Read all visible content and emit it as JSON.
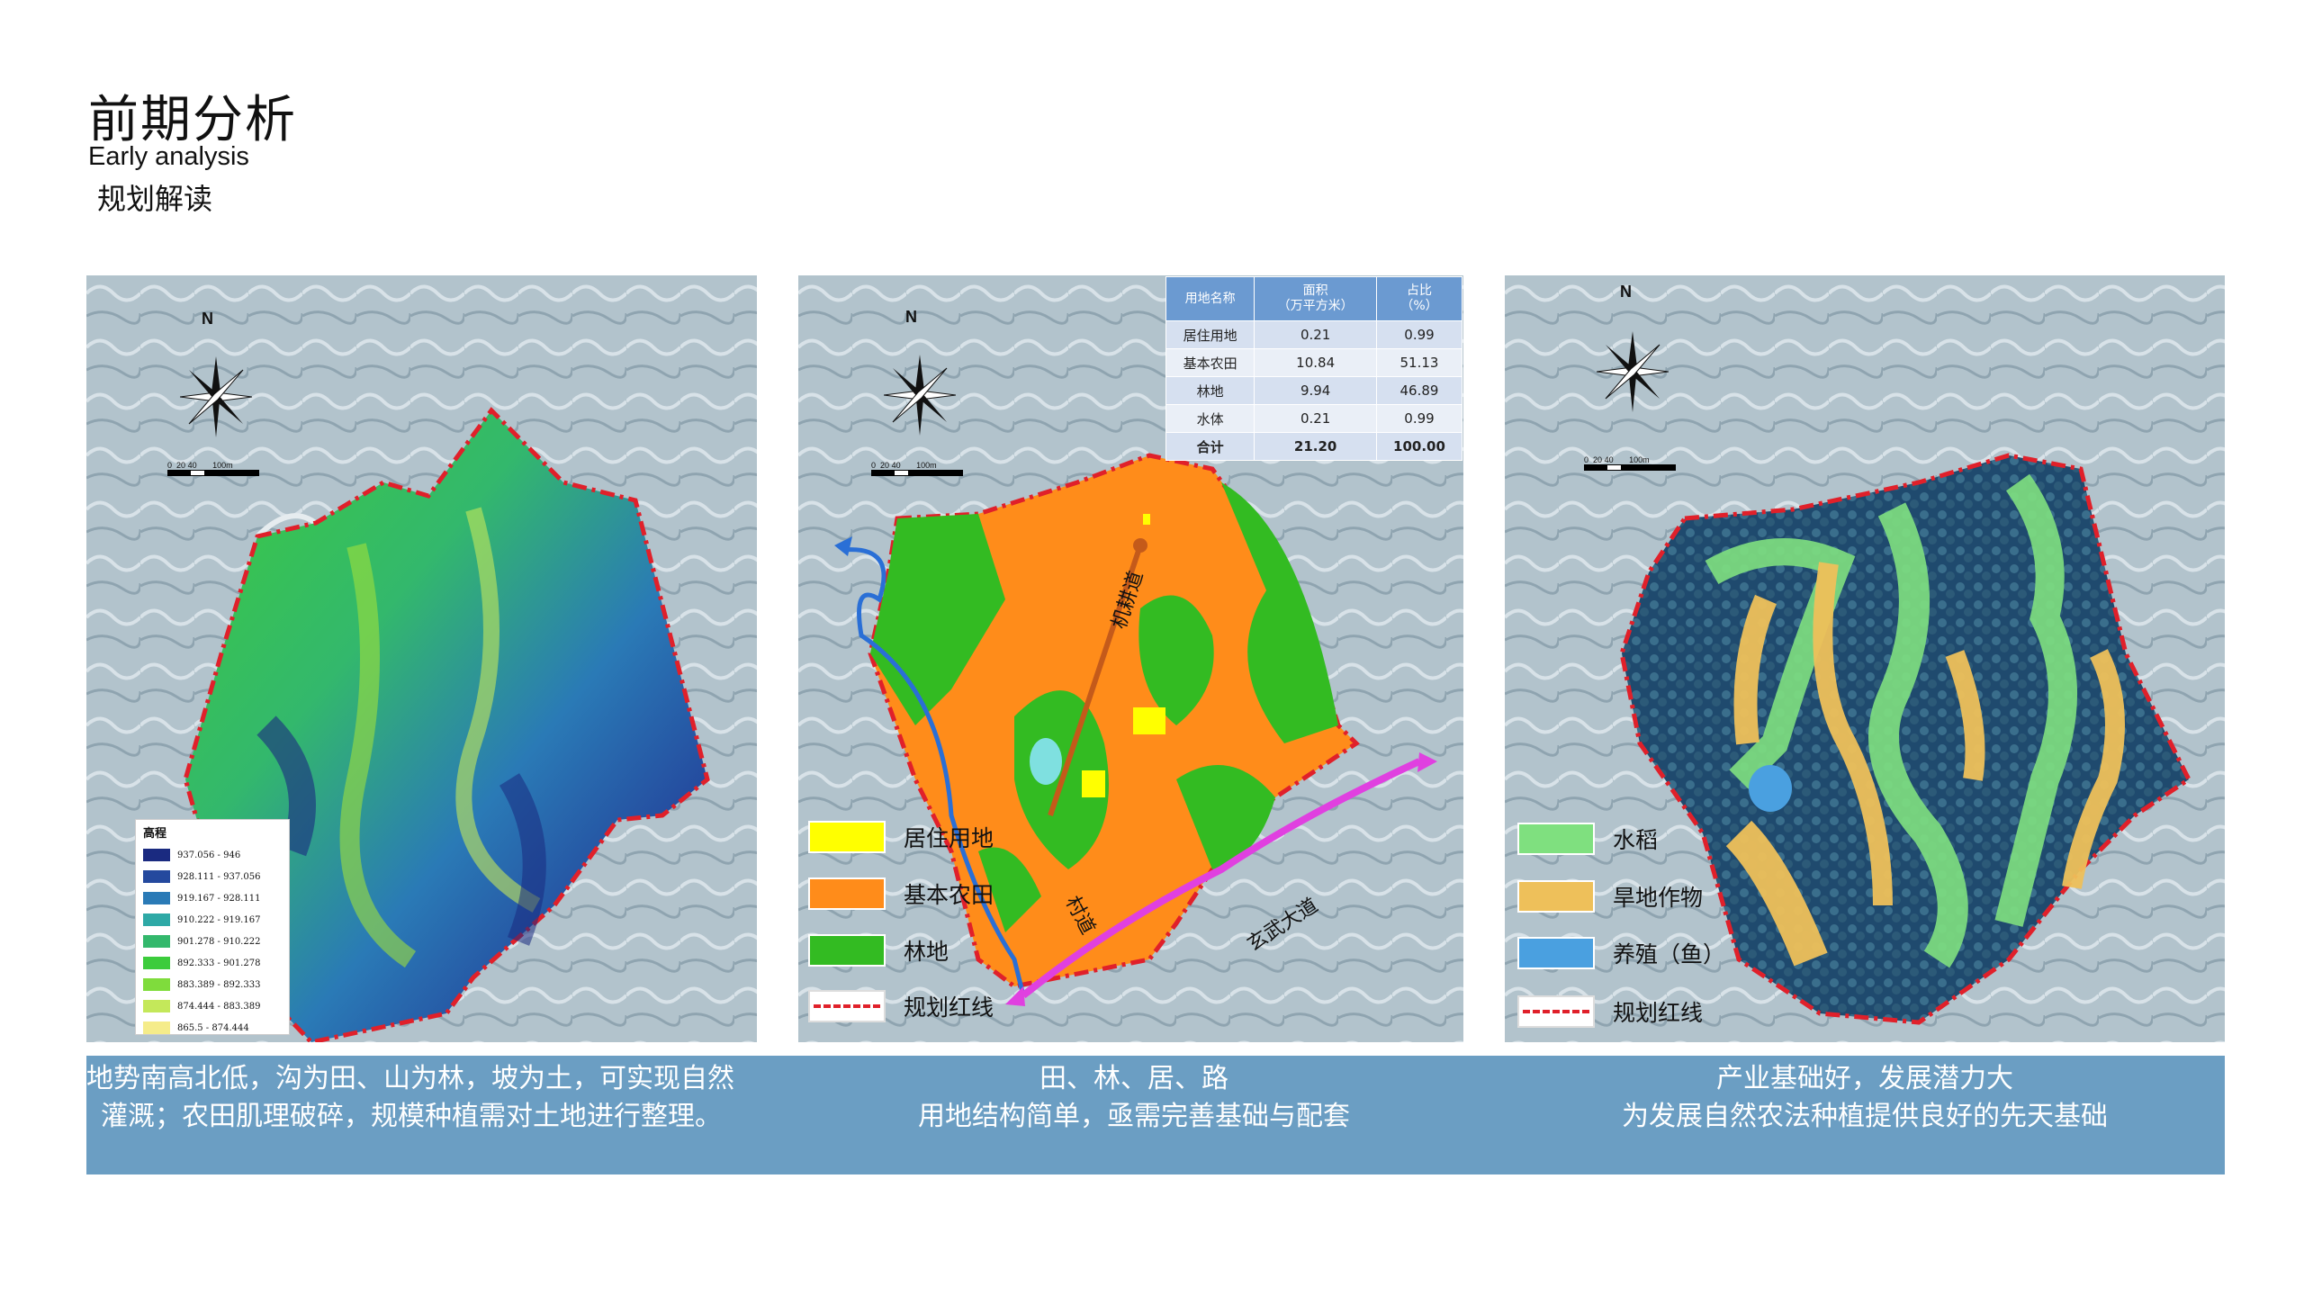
{
  "header": {
    "title": "前期分析",
    "subtitle_en": "Early  analysis",
    "subtitle_cn": "规划解读"
  },
  "map_common": {
    "north_label": "N",
    "scale_ticks": [
      "0",
      "20",
      "40",
      "100m"
    ]
  },
  "elevation_legend": {
    "title": "高程",
    "items": [
      {
        "label": "937.056 - 946",
        "color": "#1a2a80"
      },
      {
        "label": "928.111 - 937.056",
        "color": "#24499e"
      },
      {
        "label": "919.167 - 928.111",
        "color": "#2a7ab6"
      },
      {
        "label": "910.222 - 919.167",
        "color": "#2ea9a6"
      },
      {
        "label": "901.278 - 910.222",
        "color": "#33b86c"
      },
      {
        "label": "892.333 - 901.278",
        "color": "#3ccc3c"
      },
      {
        "label": "883.389 - 892.333",
        "color": "#7fdc3c"
      },
      {
        "label": "874.444 - 883.389",
        "color": "#c4e85a"
      },
      {
        "label": "865.5 - 874.444",
        "color": "#f5ec8a"
      }
    ]
  },
  "landuse_table": {
    "headers": [
      "用地名称",
      "面积\n（万平方米）",
      "占比\n（%）"
    ],
    "rows": [
      [
        "居住用地",
        "0.21",
        "0.99"
      ],
      [
        "基本农田",
        "10.84",
        "51.13"
      ],
      [
        "林地",
        "9.94",
        "46.89"
      ],
      [
        "水体",
        "0.21",
        "0.99"
      ],
      [
        "合计",
        "21.20",
        "100.00"
      ]
    ]
  },
  "landuse_legend": [
    {
      "label": "居住用地",
      "color": "#ffff00"
    },
    {
      "label": "基本农田",
      "color": "#ff8c1a"
    },
    {
      "label": "林地",
      "color": "#33bb22"
    },
    {
      "label": "规划红线",
      "color": "#e0202a"
    }
  ],
  "road_labels": {
    "machine_road": "机耕道",
    "village_road": "村道",
    "avenue": "玄武大道"
  },
  "industry_legend": [
    {
      "label": "水稻",
      "color": "#7fe07f"
    },
    {
      "label": "旱地作物",
      "color": "#eec05a"
    },
    {
      "label": "养殖（鱼）",
      "color": "#4aa0e0"
    },
    {
      "label": "规划红线",
      "color": "#e0202a"
    }
  ],
  "captions": {
    "left": [
      "地势南高北低，沟为田、山为林，坡为土，可实现自然",
      "灌溉；农田肌理破碎，规模种植需对土地进行整理。"
    ],
    "middle": [
      "田、林、居、路",
      "用地结构简单，亟需完善基础与配套"
    ],
    "right": [
      "产业基础好，发展潜力大",
      "为发展自然农法种植提供良好的先天基础"
    ]
  }
}
